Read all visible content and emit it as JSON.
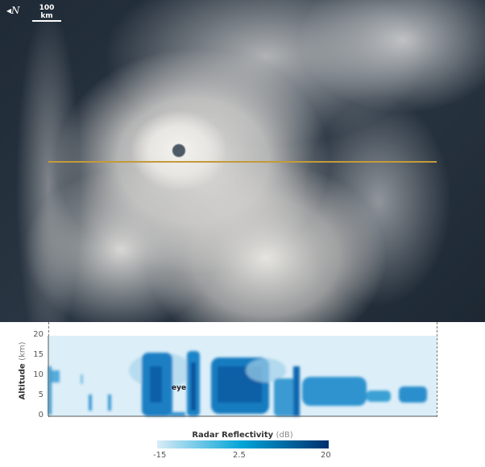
{
  "image": {
    "north_label": "N",
    "scale_label": "100 km"
  },
  "profile": {
    "y_axis_label": "Altitude",
    "y_axis_unit": "(km)",
    "y_ticks": [
      "20",
      "15",
      "10",
      "5",
      "0"
    ],
    "annotation": "eye",
    "colors": {
      "background": "#dceef8",
      "low": "#d9ecf7",
      "mid": "#00a3d6",
      "high": "#002f6e",
      "track": "#c49a3a"
    }
  },
  "colorbar": {
    "title": "Radar Reflectivity",
    "unit": "(dB)",
    "ticks": [
      "-15",
      "2.5",
      "20"
    ],
    "range": [
      -15,
      20
    ]
  }
}
